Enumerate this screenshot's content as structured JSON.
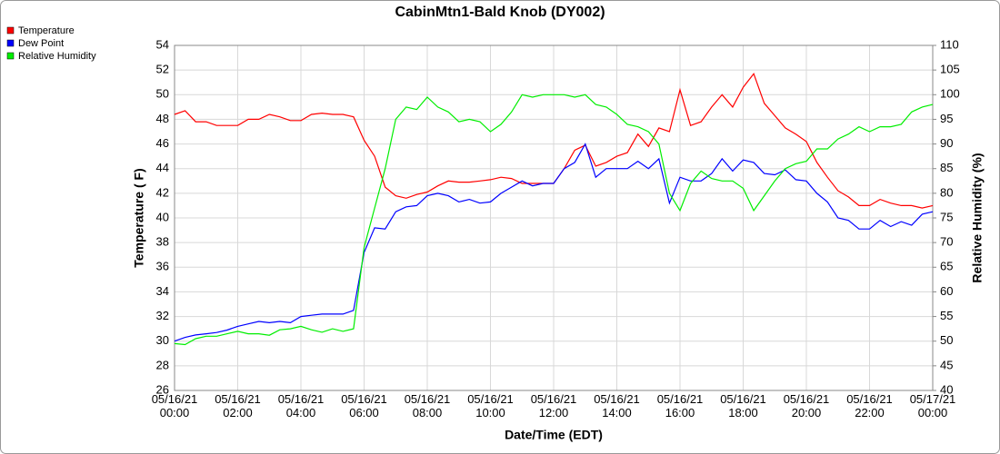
{
  "chart_data": {
    "type": "line",
    "title": "CabinMtn1-Bald Knob (DY002)",
    "x_label": "Date/Time (EDT)",
    "y_label": "Temperature ( F)",
    "y2_label": "Relative Humidity (%)",
    "legend": "top-left",
    "grid": true,
    "ylim": [
      26,
      54
    ],
    "yticks": [
      26,
      28,
      30,
      32,
      34,
      36,
      38,
      40,
      42,
      44,
      46,
      48,
      50,
      52,
      54
    ],
    "y2lim": [
      40,
      110
    ],
    "y2ticks": [
      40,
      45,
      50,
      55,
      60,
      65,
      70,
      75,
      80,
      85,
      90,
      95,
      100,
      105,
      110
    ],
    "xlim": [
      "05/16/21 00:00",
      "05/17/21 00:00"
    ],
    "xticks": [
      "05/16/21 00:00",
      "05/16/21 02:00",
      "05/16/21 04:00",
      "05/16/21 06:00",
      "05/16/21 08:00",
      "05/16/21 10:00",
      "05/16/21 12:00",
      "05/16/21 14:00",
      "05/16/21 16:00",
      "05/16/21 18:00",
      "05/16/21 20:00",
      "05/16/21 22:00",
      "05/17/21 00:00"
    ],
    "x": [
      "05/16/21 00:00",
      "05/16/21 00:20",
      "05/16/21 00:40",
      "05/16/21 01:00",
      "05/16/21 01:20",
      "05/16/21 01:40",
      "05/16/21 02:00",
      "05/16/21 02:20",
      "05/16/21 02:40",
      "05/16/21 03:00",
      "05/16/21 03:20",
      "05/16/21 03:40",
      "05/16/21 04:00",
      "05/16/21 04:20",
      "05/16/21 04:40",
      "05/16/21 05:00",
      "05/16/21 05:20",
      "05/16/21 05:40",
      "05/16/21 06:00",
      "05/16/21 06:20",
      "05/16/21 06:40",
      "05/16/21 07:00",
      "05/16/21 07:20",
      "05/16/21 07:40",
      "05/16/21 08:00",
      "05/16/21 08:20",
      "05/16/21 08:40",
      "05/16/21 09:00",
      "05/16/21 09:20",
      "05/16/21 09:40",
      "05/16/21 10:00",
      "05/16/21 10:20",
      "05/16/21 10:40",
      "05/16/21 11:00",
      "05/16/21 11:20",
      "05/16/21 11:40",
      "05/16/21 12:00",
      "05/16/21 12:20",
      "05/16/21 12:40",
      "05/16/21 13:00",
      "05/16/21 13:20",
      "05/16/21 13:40",
      "05/16/21 14:00",
      "05/16/21 14:20",
      "05/16/21 14:40",
      "05/16/21 15:00",
      "05/16/21 15:20",
      "05/16/21 15:40",
      "05/16/21 16:00",
      "05/16/21 16:20",
      "05/16/21 16:40",
      "05/16/21 17:00",
      "05/16/21 17:20",
      "05/16/21 17:40",
      "05/16/21 18:00",
      "05/16/21 18:20",
      "05/16/21 18:40",
      "05/16/21 19:00",
      "05/16/21 19:20",
      "05/16/21 19:40",
      "05/16/21 20:00",
      "05/16/21 20:20",
      "05/16/21 20:40",
      "05/16/21 21:00",
      "05/16/21 21:20",
      "05/16/21 21:40",
      "05/16/21 22:00",
      "05/16/21 22:20",
      "05/16/21 22:40",
      "05/16/21 23:00",
      "05/16/21 23:20",
      "05/16/21 23:40",
      "05/17/21 00:00"
    ],
    "series": [
      {
        "name": "Temperature",
        "color": "#ff0000",
        "axis": "y",
        "values": [
          48.4,
          48.7,
          47.8,
          47.8,
          47.5,
          47.5,
          47.5,
          48.0,
          48.0,
          48.4,
          48.2,
          47.9,
          47.9,
          48.4,
          48.5,
          48.4,
          48.4,
          48.2,
          46.3,
          45.0,
          42.5,
          41.8,
          41.6,
          41.9,
          42.1,
          42.6,
          43.0,
          42.9,
          42.9,
          43.0,
          43.1,
          43.3,
          43.2,
          42.8,
          42.8,
          42.8,
          42.8,
          44.0,
          45.5,
          45.9,
          44.2,
          44.5,
          45.0,
          45.3,
          46.8,
          45.8,
          47.3,
          47.0,
          50.4,
          47.5,
          47.8,
          49.0,
          50.0,
          49.0,
          50.6,
          51.7,
          49.3,
          48.3,
          47.3,
          46.8,
          46.2,
          44.5,
          43.3,
          42.2,
          41.7,
          41.0,
          41.0,
          41.5,
          41.2,
          41.0,
          41.0,
          40.8,
          41.0
        ]
      },
      {
        "name": "Dew Point",
        "color": "#0000ff",
        "axis": "y",
        "values": [
          30.0,
          30.3,
          30.5,
          30.6,
          30.7,
          30.9,
          31.2,
          31.4,
          31.6,
          31.5,
          31.6,
          31.5,
          32.0,
          32.1,
          32.2,
          32.2,
          32.2,
          32.5,
          37.2,
          39.2,
          39.1,
          40.5,
          40.9,
          41.0,
          41.8,
          42.0,
          41.8,
          41.3,
          41.5,
          41.2,
          41.3,
          42.0,
          42.5,
          43.0,
          42.6,
          42.8,
          42.8,
          44.0,
          44.5,
          46.0,
          43.3,
          44.0,
          44.0,
          44.0,
          44.6,
          44.0,
          44.8,
          41.2,
          43.3,
          43.0,
          43.0,
          43.6,
          44.8,
          43.8,
          44.7,
          44.5,
          43.6,
          43.5,
          43.9,
          43.1,
          43.0,
          42.0,
          41.3,
          40.0,
          39.8,
          39.1,
          39.1,
          39.8,
          39.3,
          39.7,
          39.4,
          40.3,
          40.5
        ]
      },
      {
        "name": "Relative Humidity",
        "color": "#00ee00",
        "axis": "y2",
        "values": [
          49.5,
          49.3,
          50.5,
          51,
          51,
          51.5,
          52,
          51.5,
          51.5,
          51.2,
          52.3,
          52.5,
          53.0,
          52.3,
          51.8,
          52.5,
          52.0,
          52.5,
          69,
          77,
          85,
          95,
          97.5,
          97.0,
          99.5,
          97.5,
          96.5,
          94.5,
          95.0,
          94.5,
          92.5,
          94.0,
          96.5,
          100,
          99.5,
          100,
          100,
          100,
          99.5,
          100,
          98,
          97.5,
          96,
          94,
          93.5,
          92.5,
          90,
          80,
          76.5,
          82.0,
          84.5,
          83,
          82.5,
          82.5,
          81,
          76.5,
          79.5,
          82.5,
          85,
          86,
          86.5,
          89,
          89.0,
          91.0,
          92.0,
          93.5,
          92.5,
          93.5,
          93.5,
          94.0,
          96.5,
          97.5,
          98.0
        ]
      }
    ]
  }
}
